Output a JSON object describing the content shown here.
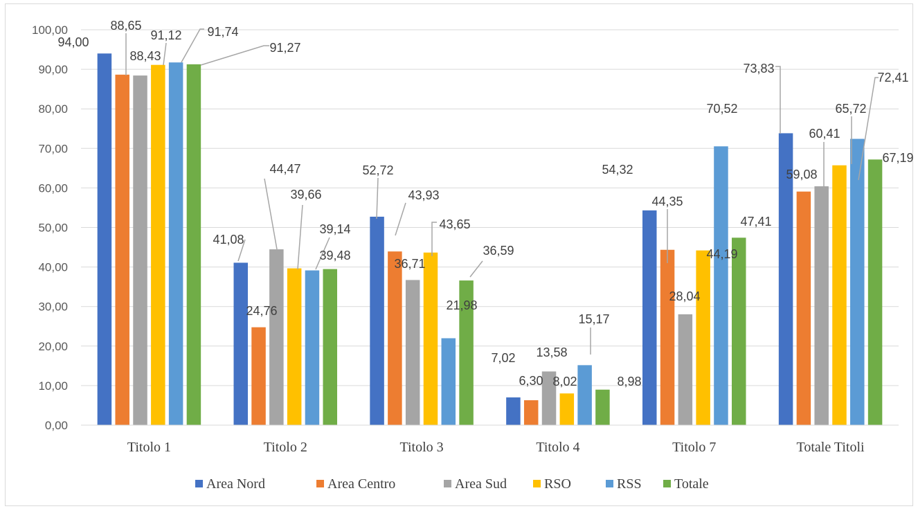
{
  "chart_data": {
    "type": "bar",
    "title": "",
    "xlabel": "",
    "ylabel": "",
    "ylim": [
      0,
      100
    ],
    "y_ticks": [
      "0,00",
      "10,00",
      "20,00",
      "30,00",
      "40,00",
      "50,00",
      "60,00",
      "70,00",
      "80,00",
      "90,00",
      "100,00"
    ],
    "grid": true,
    "legend_position": "bottom",
    "categories": [
      "Titolo 1",
      "Titolo 2",
      "Titolo 3",
      "Titolo 4",
      "Titolo 7",
      "Totale Titoli"
    ],
    "series": [
      {
        "name": "Area Nord",
        "color": "#4472c4",
        "values": [
          94.0,
          41.08,
          52.72,
          7.02,
          54.32,
          73.83
        ],
        "labels": [
          "94,00",
          "41,08",
          "52,72",
          "7,02",
          "54,32",
          "73,83"
        ]
      },
      {
        "name": "Area Centro",
        "color": "#ed7d31",
        "values": [
          88.65,
          24.76,
          43.93,
          6.3,
          44.35,
          59.08
        ],
        "labels": [
          "88,65",
          "24,76",
          "43,93",
          "6,30",
          "44,35",
          "59,08"
        ]
      },
      {
        "name": "Area Sud",
        "color": "#a5a5a5",
        "values": [
          88.43,
          44.47,
          36.71,
          13.58,
          28.04,
          60.41
        ],
        "labels": [
          "88,43",
          "44,47",
          "36,71",
          "13,58",
          "28,04",
          "60,41"
        ]
      },
      {
        "name": "RSO",
        "color": "#ffc000",
        "values": [
          91.12,
          39.66,
          43.65,
          8.02,
          44.19,
          65.72
        ],
        "labels": [
          "91,12",
          "39,66",
          "43,65",
          "8,02",
          "44,19",
          "65,72"
        ]
      },
      {
        "name": "RSS",
        "color": "#5b9bd5",
        "values": [
          91.74,
          39.14,
          21.98,
          15.17,
          70.52,
          72.41
        ],
        "labels": [
          "91,74",
          "39,14",
          "21,98",
          "15,17",
          "70,52",
          "72,41"
        ]
      },
      {
        "name": "Totale",
        "color": "#70ad47",
        "values": [
          91.27,
          39.48,
          36.59,
          8.98,
          47.41,
          67.19
        ],
        "labels": [
          "91,27",
          "39,48",
          "36,59",
          "8,98",
          "47,41",
          "67,19"
        ]
      }
    ],
    "gridline_color": "#d9d9d9",
    "leader_line_color": "#a6a6a6"
  }
}
